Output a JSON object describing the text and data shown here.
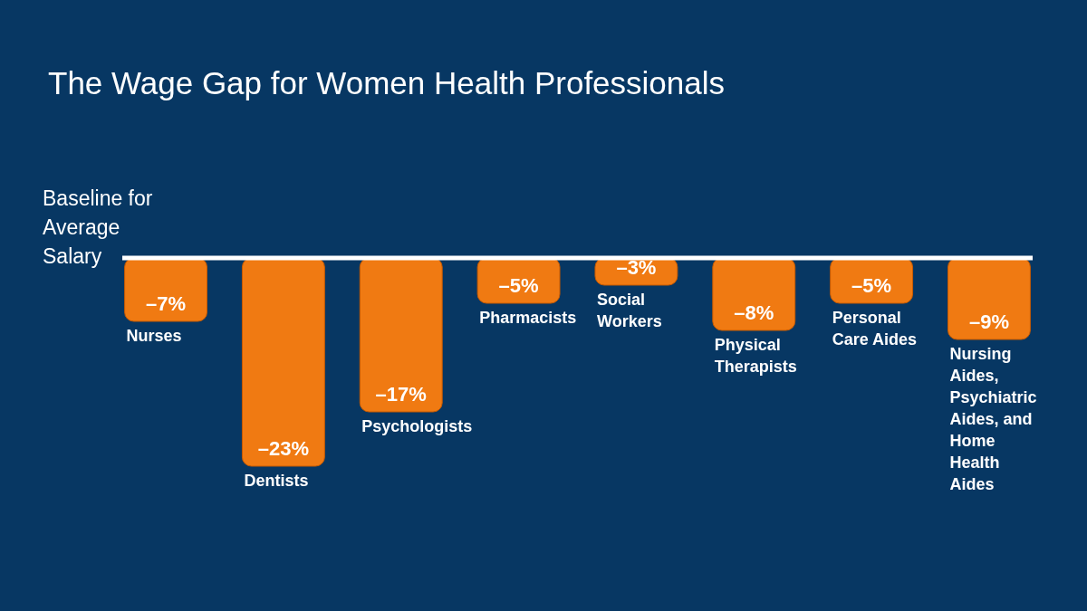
{
  "chart_data": {
    "type": "bar",
    "title": "The Wage Gap for Women Health Professionals",
    "categories": [
      "Nurses",
      "Dentists",
      "Psychologists",
      "Pharmacists",
      "Social Workers",
      "Physical Therapists",
      "Personal Care Aides",
      "Nursing Aides, Psychiatric Aides, and Home Health Aides"
    ],
    "values": [
      -7,
      -23,
      -17,
      -5,
      -3,
      -8,
      -5,
      -9
    ],
    "value_labels": [
      "–7%",
      "–23%",
      "–17%",
      "–5%",
      "–3%",
      "–8%",
      "–5%",
      "–9%"
    ],
    "color": "#f07a12",
    "tick_labels": "x",
    "ref_lines": [
      {
        "axis": "y",
        "value": 0,
        "label": "Baseline for Average Salary",
        "color": "#ffffff"
      }
    ]
  }
}
